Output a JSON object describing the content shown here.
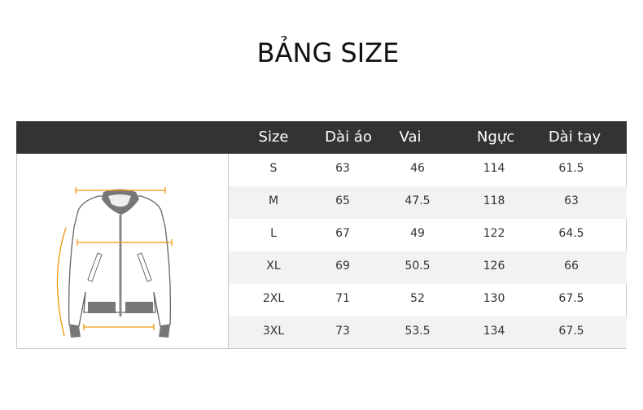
{
  "title": "BẢNG SIZE",
  "columns": [
    "Size",
    "Dài áo",
    "Vai",
    "Ngực",
    "Dài tay"
  ],
  "rows": [
    [
      "S",
      "63",
      "46",
      "114",
      "61.5"
    ],
    [
      "M",
      "65",
      "47.5",
      "118",
      "63"
    ],
    [
      "L",
      "67",
      "49",
      "122",
      "64.5"
    ],
    [
      "XL",
      "69",
      "50.5",
      "126",
      "66"
    ],
    [
      "2XL",
      "71",
      "52",
      "130",
      "67.5"
    ],
    [
      "3XL",
      "73",
      "53.5",
      "134",
      "67.5"
    ]
  ],
  "colors": {
    "header_bg": "#333333",
    "measure_line": "#f0960a",
    "alt_row": "#f2f2f2"
  },
  "image": "bomber-jacket-diagram"
}
